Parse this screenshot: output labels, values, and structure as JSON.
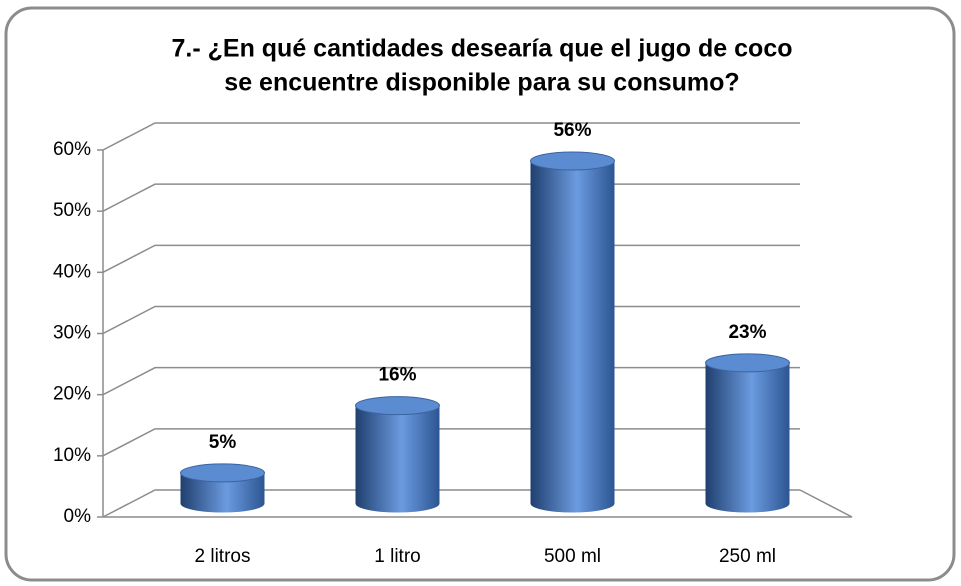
{
  "chart_data": {
    "type": "bar",
    "title": [
      "7.- ¿En qué cantidades desearía que el jugo de coco",
      "se encuentre disponible para su consumo?"
    ],
    "categories": [
      "2 litros",
      "1 litro",
      "500 ml",
      "250 ml"
    ],
    "values": [
      5,
      16,
      56,
      23
    ],
    "value_labels": [
      "5%",
      "16%",
      "56%",
      "23%"
    ],
    "color": "#4a7ebf",
    "ylim": [
      0,
      60
    ],
    "yticks": [
      {
        "value": 0,
        "label": "0%"
      },
      {
        "value": 10,
        "label": "10%"
      },
      {
        "value": 20,
        "label": "20%"
      },
      {
        "value": 30,
        "label": "30%"
      },
      {
        "value": 40,
        "label": "40%"
      },
      {
        "value": 50,
        "label": "50%"
      },
      {
        "value": 60,
        "label": "60%"
      }
    ],
    "grid": true
  }
}
